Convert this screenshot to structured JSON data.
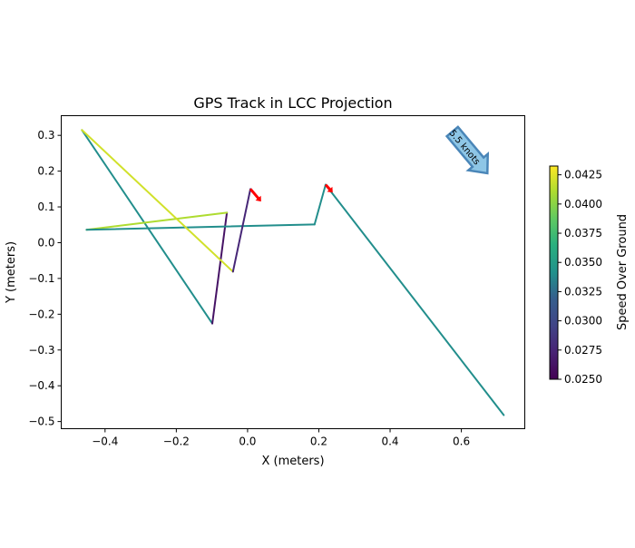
{
  "chart_data": {
    "type": "line",
    "title": "GPS Track in LCC Projection",
    "xlabel": "X (meters)",
    "ylabel": "Y (meters)",
    "xlim": [
      -0.523,
      0.778
    ],
    "ylim": [
      -0.52,
      0.355
    ],
    "xticks": [
      -0.4,
      -0.2,
      0.0,
      0.2,
      0.4,
      0.6
    ],
    "xtick_labels": [
      "−0.4",
      "−0.2",
      "0.0",
      "0.2",
      "0.4",
      "0.6"
    ],
    "yticks": [
      0.3,
      0.2,
      0.1,
      0.0,
      -0.1,
      -0.2,
      -0.3,
      -0.4,
      -0.5
    ],
    "ytick_labels": [
      "0.3",
      "0.2",
      "0.1",
      "0.0",
      "−0.1",
      "−0.2",
      "−0.3",
      "−0.4",
      "−0.5"
    ],
    "segments": [
      {
        "from": [
          -0.465,
          0.315
        ],
        "to": [
          -0.099,
          -0.226
        ],
        "speed": 0.034
      },
      {
        "from": [
          -0.099,
          -0.226
        ],
        "to": [
          -0.058,
          0.084
        ],
        "speed": 0.0262
      },
      {
        "from": [
          -0.058,
          0.084
        ],
        "to": [
          -0.452,
          0.036
        ],
        "speed": 0.041
      },
      {
        "from": [
          -0.452,
          0.036
        ],
        "to": [
          0.188,
          0.051
        ],
        "speed": 0.034
      },
      {
        "from": [
          0.188,
          0.051
        ],
        "to": [
          0.219,
          0.162
        ],
        "speed": 0.034
      },
      {
        "from": [
          0.219,
          0.162
        ],
        "to": [
          0.719,
          -0.482
        ],
        "speed": 0.034
      },
      {
        "from": [
          -0.465,
          0.315
        ],
        "to": [
          -0.041,
          -0.081
        ],
        "speed": 0.042
      },
      {
        "from": [
          -0.041,
          -0.081
        ],
        "to": [
          0.008,
          0.15
        ],
        "speed": 0.0275
      }
    ],
    "direction_arrows": [
      {
        "at": [
          0.008,
          0.15
        ],
        "dx": 0.03,
        "dy": -0.035,
        "color": "#ff0000"
      },
      {
        "at": [
          0.219,
          0.162
        ],
        "dx": 0.02,
        "dy": -0.022,
        "color": "#ff0000"
      }
    ],
    "annotation": {
      "text": "5.5 knots",
      "color": "#8ec6e6",
      "edge": "#4a86b8"
    },
    "colorbar": {
      "label": "Speed Over Ground",
      "range": [
        0.025,
        0.04325
      ],
      "ticks": [
        0.025,
        0.0275,
        0.03,
        0.0325,
        0.035,
        0.0375,
        0.04,
        0.0425
      ],
      "tick_labels": [
        "0.0250",
        "0.0275",
        "0.0300",
        "0.0325",
        "0.0350",
        "0.0375",
        "0.0400",
        "0.0425"
      ],
      "colormap": "viridis"
    }
  }
}
